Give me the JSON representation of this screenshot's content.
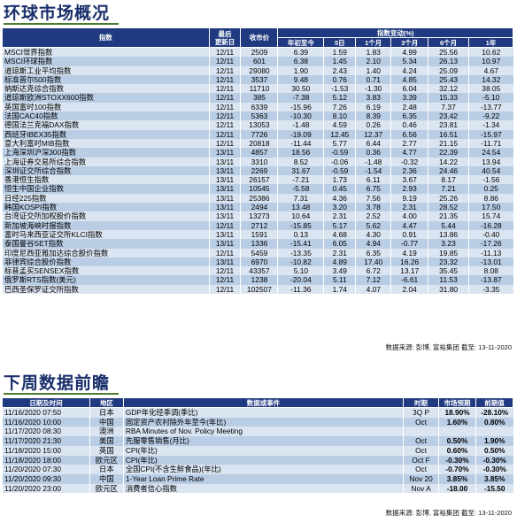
{
  "section1": {
    "title": "环球市场概况",
    "headers": {
      "index": "指数",
      "last_update": "最后\n更新日",
      "close": "收市价",
      "change_group": "指数变动(%)",
      "ytd": "年初至今",
      "d5": "5日",
      "m1": "1个月",
      "m3": "3个月",
      "m6": "6个月",
      "y1": "1年"
    },
    "rows": [
      [
        "MSCI世界指数",
        "12/11",
        "2509",
        "6.39",
        "1.59",
        "1.83",
        "4.99",
        "25.56",
        "10.62"
      ],
      [
        "MSCI环球指数",
        "12/11",
        "601",
        "6.38",
        "1.45",
        "2.10",
        "5.34",
        "26.13",
        "10.97"
      ],
      [
        "道琼斯工业平均指数",
        "12/11",
        "29080",
        "1.90",
        "2.43",
        "1.40",
        "4.24",
        "25.09",
        "4.67"
      ],
      [
        "标准普尔500指数",
        "12/11",
        "3537",
        "9.48",
        "0.76",
        "0.71",
        "4.85",
        "25.43",
        "14.32"
      ],
      [
        "纳斯达克综合指数",
        "12/11",
        "11710",
        "30.50",
        "-1.53",
        "-1.30",
        "6.04",
        "32.12",
        "38.05"
      ],
      [
        "道琼斯欧洲STOXX600指数",
        "12/11",
        "385",
        "-7.38",
        "5.12",
        "3.83",
        "3.39",
        "15.33",
        "-5.10"
      ],
      [
        "英国富时100指数",
        "12/11",
        "6339",
        "-15.96",
        "7.26",
        "6.19",
        "2.48",
        "7.37",
        "-13.77"
      ],
      [
        "法国CAC40指数",
        "12/11",
        "5363",
        "-10.30",
        "8.10",
        "8.39",
        "6.35",
        "23.42",
        "-9.22"
      ],
      [
        "德国法兰克福DAX指数",
        "12/11",
        "13053",
        "-1.48",
        "4.59",
        "0.26",
        "0.46",
        "23.81",
        "-1.34"
      ],
      [
        "西班牙IBEX35指数",
        "12/11",
        "7726",
        "-19.09",
        "12.45",
        "12.37",
        "6.56",
        "16.51",
        "-15.97"
      ],
      [
        "意大利富时MIB指数",
        "12/11",
        "20818",
        "-11.44",
        "5.77",
        "6.44",
        "2.77",
        "21.15",
        "-11.71"
      ],
      [
        "上海深圳沪深300指数",
        "13/11",
        "4857",
        "18.56",
        "-0.59",
        "0.36",
        "4.77",
        "22.39",
        "24.54"
      ],
      [
        "上海证券交易所综合指数",
        "13/11",
        "3310",
        "8.52",
        "-0.06",
        "-1.48",
        "-0.32",
        "14.22",
        "13.94"
      ],
      [
        "深圳证交所综合指数",
        "13/11",
        "2269",
        "31.67",
        "-0.59",
        "-1.54",
        "2.36",
        "24.46",
        "40.54"
      ],
      [
        "香港恒生指数",
        "13/11",
        "26157",
        "-7.21",
        "1.73",
        "6.11",
        "3.67",
        "8.17",
        "-1.56"
      ],
      [
        "恒生中国企业指数",
        "13/11",
        "10545",
        "-5.58",
        "0.45",
        "6.75",
        "2.93",
        "7.21",
        "0.25"
      ],
      [
        "日经225指数",
        "13/11",
        "25386",
        "7.31",
        "4.36",
        "7.56",
        "9.19",
        "25.26",
        "8.86"
      ],
      [
        "韩国KOSPI指数",
        "13/11",
        "2494",
        "13.48",
        "3.20",
        "3.78",
        "2.31",
        "28.52",
        "17.50"
      ],
      [
        "台湾证交所加权股价指数",
        "13/11",
        "13273",
        "10.64",
        "2.31",
        "2.52",
        "4.00",
        "21.35",
        "15.74"
      ],
      [
        "新加坡海峡时报指数",
        "12/11",
        "2712",
        "-15.85",
        "5.17",
        "5.62",
        "4.47",
        "5.44",
        "-16.28"
      ],
      [
        "富时马来西亚证交所KLCI指数",
        "13/11",
        "1591",
        "0.13",
        "4.68",
        "4.30",
        "0.91",
        "13.86",
        "-0.40"
      ],
      [
        "泰国曼谷SET指数",
        "13/11",
        "1336",
        "-15.41",
        "6.05",
        "4.94",
        "-0.77",
        "3.23",
        "-17.26"
      ],
      [
        "印度尼西亚雅加达综合股价指数",
        "12/11",
        "5459",
        "-13.35",
        "2.31",
        "6.35",
        "4.19",
        "19.85",
        "-11.13"
      ],
      [
        "菲律宾综合股价指数",
        "13/11",
        "6970",
        "-10.82",
        "4.89",
        "17.40",
        "16.26",
        "23.32",
        "-13.01"
      ],
      [
        "标普孟买SENSEX指数",
        "12/11",
        "43357",
        "5.10",
        "3.49",
        "6.72",
        "13.17",
        "35.45",
        "8.08"
      ],
      [
        "俄罗斯RTS指数(美元)",
        "12/11",
        "1238",
        "-20.04",
        "5.11",
        "7.12",
        "-6.61",
        "11.53",
        "-13.87"
      ],
      [
        "巴西圣保罗证交所指数",
        "12/11",
        "102507",
        "-11.36",
        "1.74",
        "4.07",
        "2.04",
        "31.80",
        "-3.35"
      ]
    ],
    "source_note": "数据来源: 彭博, 富裕集团 截至: 13-11-2020"
  },
  "section2": {
    "title": "下周数据前瞻",
    "headers": {
      "datetime": "日期及时间",
      "region": "地区",
      "event": "数据或事件",
      "period": "时期",
      "forecast": "市场预期",
      "previous": "前期值"
    },
    "rows": [
      [
        "11/16/2020 07:50",
        "日本",
        "GDP年化经季调(季比)",
        "3Q P",
        "18.90%",
        "-28.10%"
      ],
      [
        "11/16/2020 10:00",
        "中国",
        "固定资产农村除外年至今(年比)",
        "Oct",
        "1.60%",
        "0.80%"
      ],
      [
        "11/17/2020 08:30",
        "澳洲",
        "RBA Minutes of Nov. Policy Meeting",
        "",
        "",
        ""
      ],
      [
        "11/17/2020 21:30",
        "美国",
        "先服零售销售(月比)",
        "Oct",
        "0.50%",
        "1.90%"
      ],
      [
        "11/18/2020 15:00",
        "英国",
        "CPI(年比)",
        "Oct",
        "0.60%",
        "0.50%"
      ],
      [
        "11/18/2020 18:00",
        "欧元区",
        "CPI(年比)",
        "Oct F",
        "-0.30%",
        "-0.30%"
      ],
      [
        "11/20/2020 07:30",
        "日本",
        "全国CPI(不含生鲜食品)(年比)",
        "Oct",
        "-0.70%",
        "-0.30%"
      ],
      [
        "11/20/2020 09:30",
        "中国",
        "1-Year Loan Prime Rate",
        "Nov 20",
        "3.85%",
        "3.85%"
      ],
      [
        "11/20/2020 23:00",
        "欧元区",
        "消费者信心指数",
        "Nov A",
        "-18.00",
        "-15.50"
      ]
    ],
    "source_note": "数据来源: 彭博, 富裕集团 截至: 13-11-2020"
  }
}
